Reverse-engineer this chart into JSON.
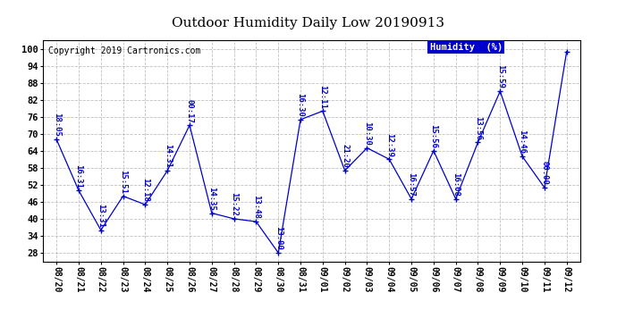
{
  "title": "Outdoor Humidity Daily Low 20190913",
  "copyright": "Copyright 2019 Cartronics.com",
  "legend_label": "Humidity  (%)",
  "x_labels": [
    "08/20",
    "08/21",
    "08/22",
    "08/23",
    "08/24",
    "08/25",
    "08/26",
    "08/27",
    "08/28",
    "08/29",
    "08/30",
    "08/31",
    "09/01",
    "09/02",
    "09/03",
    "09/04",
    "09/05",
    "09/06",
    "09/07",
    "09/08",
    "09/09",
    "09/10",
    "09/11",
    "09/12"
  ],
  "y_values": [
    68,
    50,
    36,
    48,
    45,
    57,
    73,
    42,
    40,
    39,
    28,
    75,
    78,
    57,
    65,
    61,
    47,
    64,
    47,
    67,
    85,
    62,
    51,
    99
  ],
  "point_labels": [
    "18:05",
    "16:31",
    "13:31",
    "15:51",
    "12:18",
    "14:31",
    "00:17",
    "14:35",
    "15:22",
    "13:48",
    "13:00",
    "16:30",
    "12:11",
    "21:20",
    "10:30",
    "12:39",
    "16:57",
    "15:56",
    "16:08",
    "13:56",
    "15:59",
    "14:46",
    "00:00",
    ""
  ],
  "ylim": [
    25,
    103
  ],
  "yticks": [
    28,
    34,
    40,
    46,
    52,
    58,
    64,
    70,
    76,
    82,
    88,
    94,
    100
  ],
  "line_color": "#0000cc",
  "marker_color": "#0000cc",
  "bg_color": "#ffffff",
  "grid_color": "#b0b0b0",
  "title_fontsize": 11,
  "label_fontsize": 6.5,
  "axis_fontsize": 7,
  "copyright_fontsize": 7
}
